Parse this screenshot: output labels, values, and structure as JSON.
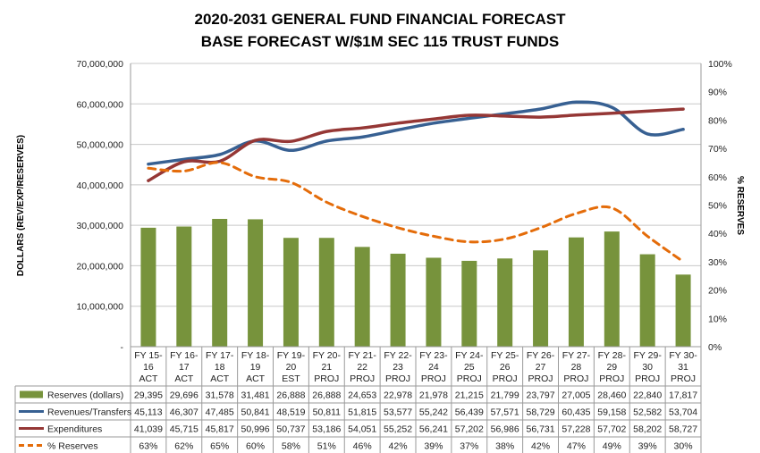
{
  "chart_data": {
    "type": "bar",
    "title": "2020-2031 GENERAL FUND FINANCIAL FORECAST",
    "subtitle": "BASE FORECAST W/$1M SEC 115 TRUST FUNDS",
    "ylabel": "DOLLARS (REV/EXP/RESERVES)",
    "y2label": "% RESERVES",
    "ylim": [
      0,
      70000000
    ],
    "y2lim": [
      0,
      100
    ],
    "yticks": [
      "-",
      "10,000,000",
      "20,000,000",
      "30,000,000",
      "40,000,000",
      "50,000,000",
      "60,000,000",
      "70,000,000"
    ],
    "y2ticks": [
      "0%",
      "10%",
      "20%",
      "30%",
      "40%",
      "50%",
      "60%",
      "70%",
      "80%",
      "90%",
      "100%"
    ],
    "grid": true,
    "legend": "data-table",
    "categories": [
      [
        "FY 15-",
        "16",
        "ACT"
      ],
      [
        "FY 16-",
        "17",
        "ACT"
      ],
      [
        "FY 17-",
        "18",
        "ACT"
      ],
      [
        "FY 18-",
        "19",
        "ACT"
      ],
      [
        "FY 19-",
        "20",
        "EST"
      ],
      [
        "FY 20-",
        "21",
        "PROJ"
      ],
      [
        "FY 21-",
        "22",
        "PROJ"
      ],
      [
        "FY 22-",
        "23",
        "PROJ"
      ],
      [
        "FY 23-",
        "24",
        "PROJ"
      ],
      [
        "FY 24-",
        "25",
        "PROJ"
      ],
      [
        "FY 25-",
        "26",
        "PROJ"
      ],
      [
        "FY 26-",
        "27",
        "PROJ"
      ],
      [
        "FY 27-",
        "28",
        "PROJ"
      ],
      [
        "FY 28-",
        "29",
        "PROJ"
      ],
      [
        "FY 29-",
        "30",
        "PROJ"
      ],
      [
        "FY 30-",
        "31",
        "PROJ"
      ]
    ],
    "series": [
      {
        "name": "Reserves (dollars)",
        "type": "bar",
        "axis": "left",
        "color": "#77933C",
        "values": [
          29395000,
          29696000,
          31578000,
          31481000,
          26888000,
          26888000,
          24653000,
          22978000,
          21978000,
          21215000,
          21799000,
          23797000,
          27005000,
          28460000,
          22840000,
          17817000
        ],
        "labels": [
          "29,395",
          "29,696",
          "31,578",
          "31,481",
          "26,888",
          "26,888",
          "24,653",
          "22,978",
          "21,978",
          "21,215",
          "21,799",
          "23,797",
          "27,005",
          "28,460",
          "22,840",
          "17,817"
        ]
      },
      {
        "name": "Revenues/Transfers",
        "type": "line",
        "axis": "left",
        "color": "#376092",
        "values": [
          45113000,
          46307000,
          47485000,
          50841000,
          48519000,
          50811000,
          51815000,
          53577000,
          55242000,
          56439000,
          57571000,
          58729000,
          60435000,
          59158000,
          52582000,
          53704000
        ],
        "labels": [
          "45,113",
          "46,307",
          "47,485",
          "50,841",
          "48,519",
          "50,811",
          "51,815",
          "53,577",
          "55,242",
          "56,439",
          "57,571",
          "58,729",
          "60,435",
          "59,158",
          "52,582",
          "53,704"
        ]
      },
      {
        "name": "Expenditures",
        "type": "line",
        "axis": "left",
        "color": "#953735",
        "values": [
          41039000,
          45715000,
          45817000,
          50996000,
          50737000,
          53186000,
          54051000,
          55252000,
          56241000,
          57202000,
          56986000,
          56731000,
          57228000,
          57702000,
          58202000,
          58727000
        ],
        "labels": [
          "41,039",
          "45,715",
          "45,817",
          "50,996",
          "50,737",
          "53,186",
          "54,051",
          "55,252",
          "56,241",
          "57,202",
          "56,986",
          "56,731",
          "57,228",
          "57,702",
          "58,202",
          "58,727"
        ]
      },
      {
        "name": "% Reserves",
        "type": "line",
        "axis": "right",
        "dashed": true,
        "color": "#E46C0A",
        "values": [
          63,
          62,
          65,
          60,
          58,
          51,
          46,
          42,
          39,
          37,
          38,
          42,
          47,
          49,
          39,
          30
        ],
        "labels": [
          "63%",
          "62%",
          "65%",
          "60%",
          "58%",
          "51%",
          "46%",
          "42%",
          "39%",
          "37%",
          "38%",
          "42%",
          "47%",
          "49%",
          "39%",
          "30%"
        ]
      }
    ]
  }
}
